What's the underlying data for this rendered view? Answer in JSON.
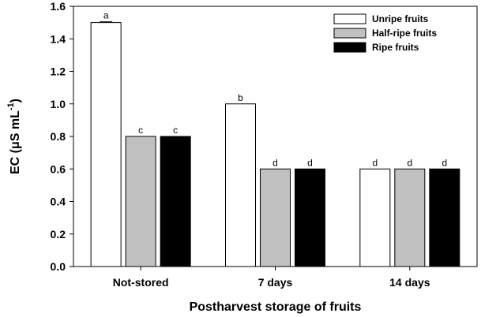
{
  "chart_data": {
    "type": "bar",
    "categories": [
      "Not-stored",
      "7 days",
      "14 days"
    ],
    "series": [
      {
        "name": "Unripe fruits",
        "values": [
          1.5,
          1.0,
          0.6
        ],
        "letters": [
          "a",
          "b",
          "d"
        ],
        "color": "#ffffff"
      },
      {
        "name": "Half-ripe fruits",
        "values": [
          0.8,
          0.6,
          0.6
        ],
        "letters": [
          "c",
          "d",
          "d"
        ],
        "color": "#c0c0c0"
      },
      {
        "name": "Ripe fruits",
        "values": [
          0.8,
          0.6,
          0.6
        ],
        "letters": [
          "c",
          "d",
          "d"
        ],
        "color": "#000000"
      }
    ],
    "error": [
      [
        0.005,
        0,
        0
      ],
      [
        0,
        0,
        0
      ],
      [
        0,
        0,
        0
      ]
    ],
    "xlabel": "Postharvest storage of fruits",
    "ylabel_prefix": "EC (μS mL",
    "ylabel_superscript": "-1",
    "ylabel_suffix": ")",
    "ylim": [
      0.0,
      1.6
    ],
    "yticks": [
      "0.0",
      "0.2",
      "0.4",
      "0.6",
      "0.8",
      "1.0",
      "1.2",
      "1.4",
      "1.6"
    ],
    "grid": false,
    "legend_position": "top-right"
  }
}
